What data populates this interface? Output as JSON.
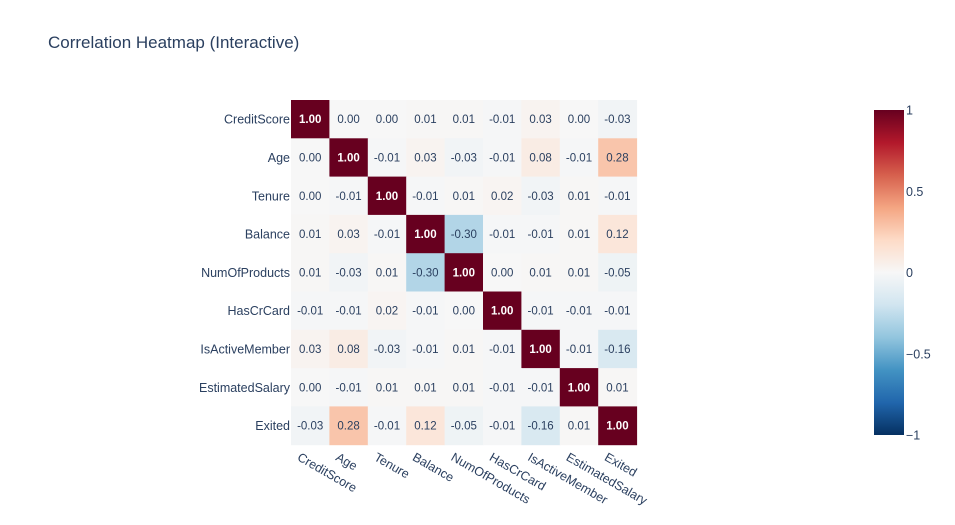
{
  "title": "Correlation Heatmap (Interactive)",
  "chart_data": {
    "type": "heatmap",
    "title": "Correlation Heatmap (Interactive)",
    "x": [
      "CreditScore",
      "Age",
      "Tenure",
      "Balance",
      "NumOfProducts",
      "HasCrCard",
      "IsActiveMember",
      "EstimatedSalary",
      "Exited"
    ],
    "y": [
      "CreditScore",
      "Age",
      "Tenure",
      "Balance",
      "NumOfProducts",
      "HasCrCard",
      "IsActiveMember",
      "EstimatedSalary",
      "Exited"
    ],
    "z": [
      [
        1.0,
        0.0,
        0.0,
        0.01,
        0.01,
        -0.01,
        0.03,
        0.0,
        -0.03
      ],
      [
        0.0,
        1.0,
        -0.01,
        0.03,
        -0.03,
        -0.01,
        0.08,
        -0.01,
        0.28
      ],
      [
        0.0,
        -0.01,
        1.0,
        -0.01,
        0.01,
        0.02,
        -0.03,
        0.01,
        -0.01
      ],
      [
        0.01,
        0.03,
        -0.01,
        1.0,
        -0.3,
        -0.01,
        -0.01,
        0.01,
        0.12
      ],
      [
        0.01,
        -0.03,
        0.01,
        -0.3,
        1.0,
        0.0,
        0.01,
        0.01,
        -0.05
      ],
      [
        -0.01,
        -0.01,
        0.02,
        -0.01,
        0.0,
        1.0,
        -0.01,
        -0.01,
        -0.01
      ],
      [
        0.03,
        0.08,
        -0.03,
        -0.01,
        0.01,
        -0.01,
        1.0,
        -0.01,
        -0.16
      ],
      [
        0.0,
        -0.01,
        0.01,
        0.01,
        0.01,
        -0.01,
        -0.01,
        1.0,
        0.01
      ],
      [
        -0.03,
        0.28,
        -0.01,
        0.12,
        -0.05,
        -0.01,
        -0.16,
        0.01,
        1.0
      ]
    ],
    "zrange": [
      -1,
      1
    ],
    "colorscale": "RdBu",
    "colorscale_stops": [
      "#053061",
      "#2166ac",
      "#4393c3",
      "#92c5de",
      "#d1e5f0",
      "#f7f7f7",
      "#fddbc7",
      "#f4a582",
      "#d6604d",
      "#b2182b",
      "#67001f"
    ],
    "colorbar_ticks": [
      {
        "value": 1,
        "label": "1"
      },
      {
        "value": 0.5,
        "label": "0.5"
      },
      {
        "value": 0,
        "label": "0"
      },
      {
        "value": -0.5,
        "label": "−0.5"
      },
      {
        "value": -1,
        "label": "−1"
      }
    ],
    "cell_label_format": "0.00",
    "legend": "colorbar right"
  }
}
